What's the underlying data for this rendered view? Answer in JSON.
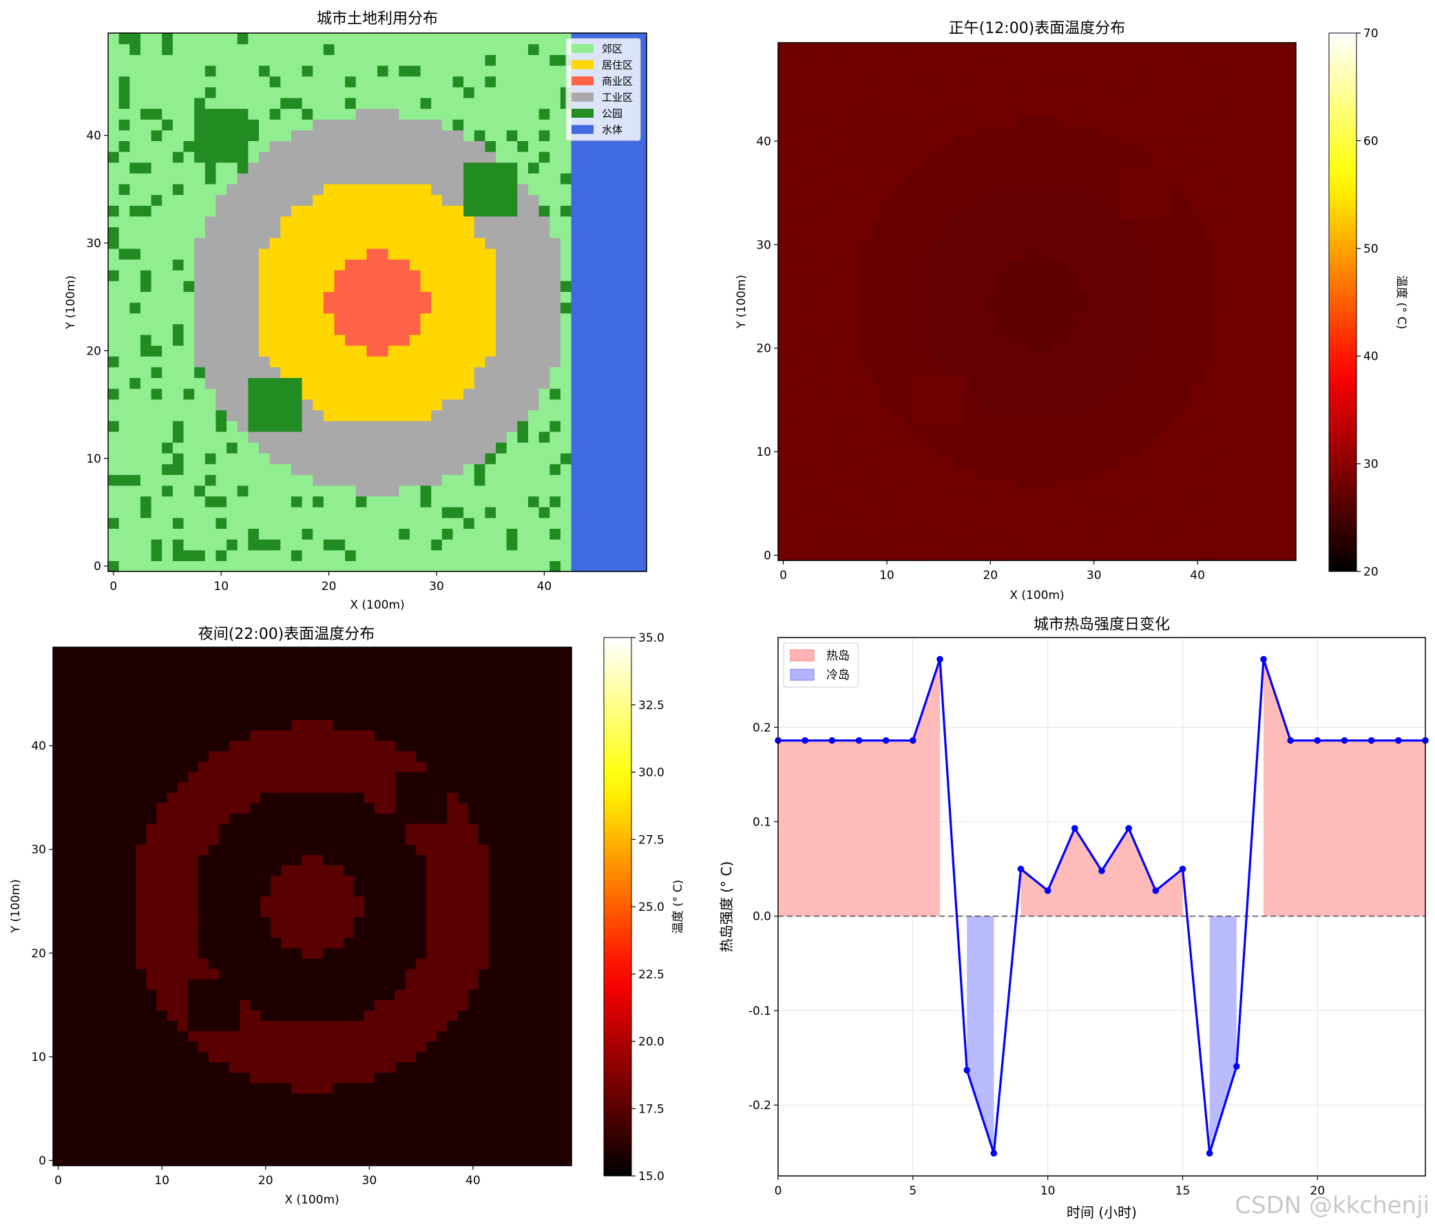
{
  "watermark": "CSDN @kkchenji",
  "chart_data": [
    {
      "type": "heatmap",
      "title": "城市土地利用分布",
      "xlabel": "X (100m)",
      "ylabel": "Y (100m)",
      "grid_size": [
        50,
        50
      ],
      "xlim": [
        0,
        50
      ],
      "ylim": [
        0,
        50
      ],
      "xticks": [
        "0",
        "10",
        "20",
        "30",
        "40"
      ],
      "yticks": [
        "0",
        "10",
        "20",
        "30",
        "40"
      ],
      "legend_position": "top-right",
      "categories": [
        {
          "name": "郊区",
          "color": "#90EE90"
        },
        {
          "name": "居住区",
          "color": "#FFD700"
        },
        {
          "name": "商业区",
          "color": "#FF6347"
        },
        {
          "name": "工业区",
          "color": "#A9A9A9"
        },
        {
          "name": "公园",
          "color": "#228B22"
        },
        {
          "name": "水体",
          "color": "#4169E1"
        }
      ],
      "regions": {
        "commercial_center": [
          25,
          25
        ],
        "commercial_radius": 4.6,
        "residential_radius": 11.5,
        "industrial_radius_x": 17.5,
        "industrial_radius_y": 17.6,
        "water_x_from": 43,
        "parks": [
          [
            8,
            13,
            38,
            43
          ],
          [
            33,
            38,
            33,
            38
          ],
          [
            13,
            18,
            13,
            18
          ]
        ]
      }
    },
    {
      "type": "heatmap",
      "title": "正午(12:00)表面温度分布",
      "xlabel": "X (100m)",
      "ylabel": "Y (100m)",
      "colorbar_label": "温度 (° C)",
      "colorbar_ticks": [
        "20",
        "30",
        "40",
        "50",
        "60",
        "70"
      ],
      "vmin": 20,
      "vmax": 70,
      "xticks": [
        "0",
        "10",
        "20",
        "30",
        "40"
      ],
      "yticks": [
        "0",
        "10",
        "20",
        "30",
        "40"
      ],
      "base_temperature": 28.0,
      "colormap": "hot"
    },
    {
      "type": "heatmap",
      "title": "夜间(22:00)表面温度分布",
      "xlabel": "X (100m)",
      "ylabel": "Y (100m)",
      "colorbar_label": "温度 (° C)",
      "colorbar_ticks": [
        "15.0",
        "17.5",
        "20.0",
        "22.5",
        "25.0",
        "27.5",
        "30.0",
        "32.5",
        "35.0"
      ],
      "vmin": 15,
      "vmax": 35,
      "xticks": [
        "0",
        "10",
        "20",
        "30",
        "40"
      ],
      "yticks": [
        "0",
        "10",
        "20",
        "30",
        "40"
      ],
      "colormap": "hot"
    },
    {
      "type": "line",
      "title": "城市热岛强度日变化",
      "xlabel": "时间 (小时)",
      "ylabel": "热岛强度 (° C)",
      "x": [
        0,
        1,
        2,
        3,
        4,
        5,
        6,
        7,
        8,
        9,
        10,
        11,
        12,
        13,
        14,
        15,
        16,
        17,
        18,
        19,
        20,
        21,
        22,
        23,
        24
      ],
      "values": [
        0.186,
        0.186,
        0.186,
        0.186,
        0.186,
        0.186,
        0.272,
        -0.163,
        -0.251,
        0.05,
        0.027,
        0.093,
        0.048,
        0.093,
        0.027,
        0.05,
        -0.251,
        -0.159,
        0.272,
        0.186,
        0.186,
        0.186,
        0.186,
        0.186,
        0.186
      ],
      "xlim": [
        0,
        24
      ],
      "ylim": [
        -0.275,
        0.295
      ],
      "xticks": [
        "0",
        "5",
        "10",
        "15",
        "20"
      ],
      "yticks": [
        "-0.2",
        "-0.1",
        "0.0",
        "0.1",
        "0.2"
      ],
      "legend": [
        "热岛",
        "冷岛"
      ],
      "legend_position": "top-left",
      "grid": true,
      "line_color": "#0000FF",
      "heat_fill": "#FFB3B3",
      "cool_fill": "#B3B3FF"
    }
  ]
}
